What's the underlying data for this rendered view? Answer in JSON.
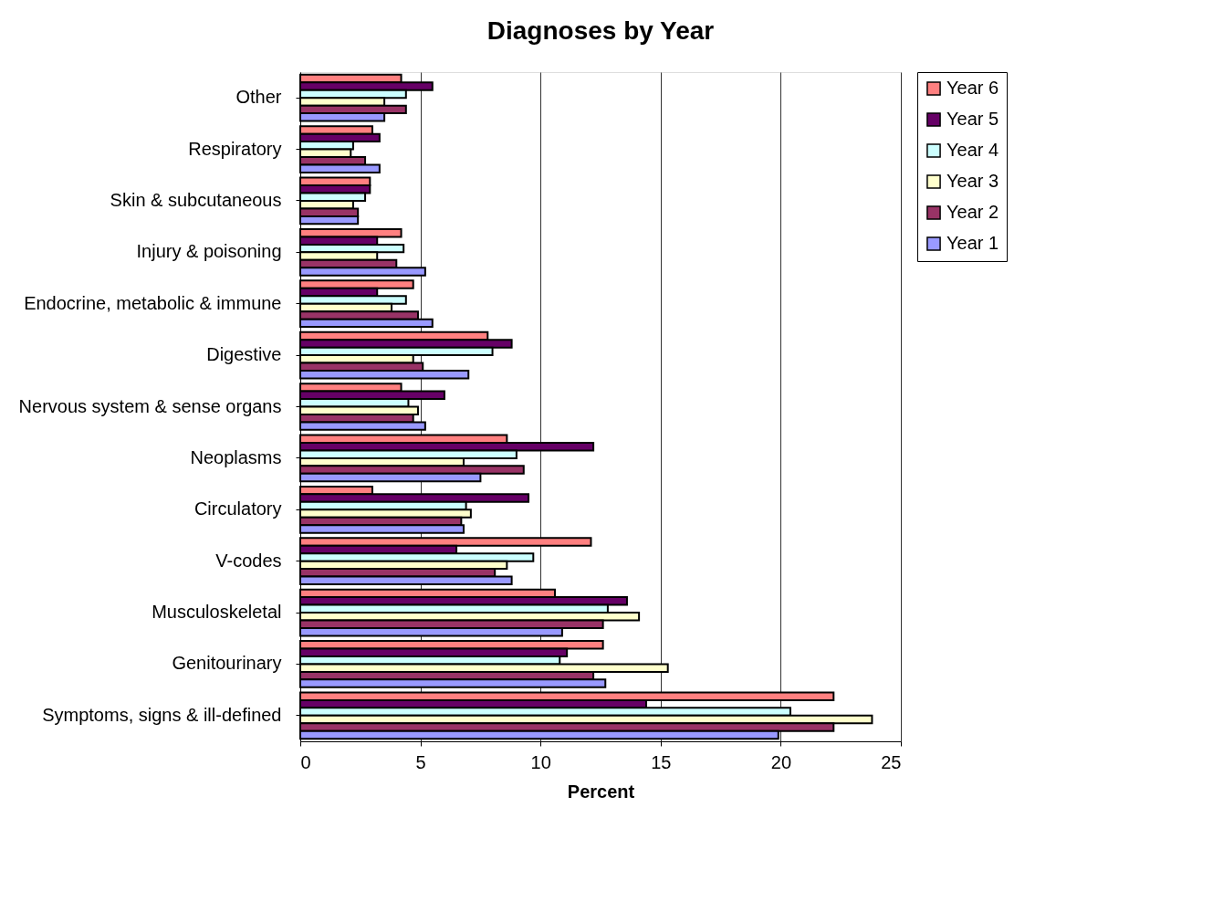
{
  "chart_data": {
    "type": "bar",
    "orientation": "horizontal",
    "title": "Diagnoses by Year",
    "xlabel": "Percent",
    "categories": [
      "Other",
      "Respiratory",
      "Skin & subcutaneous",
      "Injury & poisoning",
      "Endocrine, metabolic & immune",
      "Digestive",
      "Nervous system & sense organs",
      "Neoplasms",
      "Circulatory",
      "V-codes",
      "Musculoskeletal",
      "Genitourinary",
      "Symptoms, signs & ill-defined"
    ],
    "series": [
      {
        "name": "Year 6",
        "color": "#ff8080",
        "values": [
          4.2,
          3.0,
          2.9,
          4.2,
          4.7,
          7.8,
          4.2,
          8.6,
          3.0,
          12.1,
          10.6,
          12.6,
          22.2
        ]
      },
      {
        "name": "Year 5",
        "color": "#660066",
        "values": [
          5.5,
          3.3,
          2.9,
          3.2,
          3.2,
          8.8,
          6.0,
          12.2,
          9.5,
          6.5,
          13.6,
          11.1,
          14.4
        ]
      },
      {
        "name": "Year 4",
        "color": "#ccffff",
        "values": [
          4.4,
          2.2,
          2.7,
          4.3,
          4.4,
          8.0,
          4.5,
          9.0,
          6.9,
          9.7,
          12.8,
          10.8,
          20.4
        ]
      },
      {
        "name": "Year 3",
        "color": "#ffffcc",
        "values": [
          3.5,
          2.1,
          2.2,
          3.2,
          3.8,
          4.7,
          4.9,
          6.8,
          7.1,
          8.6,
          14.1,
          15.3,
          23.8
        ]
      },
      {
        "name": "Year 2",
        "color": "#993366",
        "values": [
          4.4,
          2.7,
          2.4,
          4.0,
          4.9,
          5.1,
          4.7,
          9.3,
          6.7,
          8.1,
          12.6,
          12.2,
          22.2
        ]
      },
      {
        "name": "Year 1",
        "color": "#9999ff",
        "values": [
          3.5,
          3.3,
          2.4,
          5.2,
          5.5,
          7.0,
          5.2,
          7.5,
          6.8,
          8.8,
          10.9,
          12.7,
          19.9
        ]
      }
    ],
    "xlim": [
      0,
      25
    ],
    "xticks": [
      0,
      5,
      10,
      15,
      20,
      25
    ],
    "grid": "x",
    "legend": "right"
  }
}
